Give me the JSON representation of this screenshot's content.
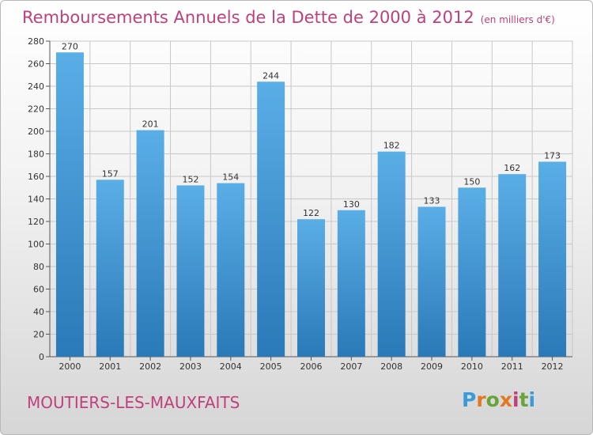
{
  "title": "Remboursements Annuels de la Dette de 2000 à 2012",
  "unit_note": "(en milliers d'€)",
  "commune": "MOUTIERS-LES-MAUXFAITS",
  "logo_text": "Proxiti",
  "colors": {
    "title": "#c0407c",
    "bar_top": "#5aaee6",
    "bar_bottom": "#2a79b8",
    "logo_letters": [
      "#3a9bd8",
      "#e07a22",
      "#6aa33a",
      "#e07a22",
      "#c0407c",
      "#6aa33a",
      "#3a9bd8"
    ]
  },
  "chart_data": {
    "type": "bar",
    "categories": [
      "2000",
      "2001",
      "2002",
      "2003",
      "2004",
      "2005",
      "2006",
      "2007",
      "2008",
      "2009",
      "2010",
      "2011",
      "2012"
    ],
    "values": [
      270,
      157,
      201,
      152,
      154,
      244,
      122,
      130,
      182,
      133,
      150,
      162,
      173
    ],
    "ylim": [
      0,
      280
    ],
    "yticks": [
      0,
      20,
      40,
      60,
      80,
      100,
      120,
      140,
      160,
      180,
      200,
      220,
      240,
      260,
      280
    ],
    "grid": true,
    "data_labels": true
  }
}
